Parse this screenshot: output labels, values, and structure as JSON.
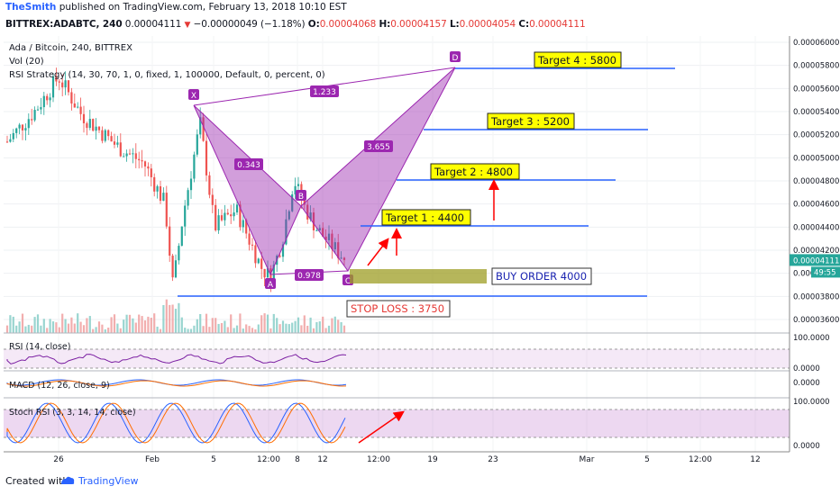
{
  "header": {
    "user": "TheSmith",
    "published": "published on TradingView.com, February 13, 2018 10:10 EST",
    "symbol": "BITTREX:ADABTC, 240",
    "last": "0.00004111",
    "change": "−0.00000049 (−1.18%)",
    "o_label": "O:",
    "o": "0.00004068",
    "h_label": "H:",
    "h": "0.00004157",
    "l_label": "L:",
    "l": "0.00004054",
    "c_label": "C:",
    "c": "0.00004111"
  },
  "legend": {
    "pair": "Ada / Bitcoin, 240, BITTREX",
    "vol": "Vol (20)",
    "strategy": "RSI Strategy (14, 30, 70, 1, 0, fixed, 1, 100000, Default, 0, percent, 0)",
    "rsi": "RSI (14, close)",
    "macd": "MACD (12, 26, close, 9)",
    "stoch": "Stoch RSI (3, 3, 14, 14, close)"
  },
  "chart_data": {
    "type": "candlestick",
    "y_ticks": [
      "0.00006000",
      "0.00005800",
      "0.00005600",
      "0.00005400",
      "0.00005200",
      "0.00005000",
      "0.00004800",
      "0.00004600",
      "0.00004400",
      "0.00004200",
      "0.00004000",
      "0.00003800",
      "0.00003600"
    ],
    "x_ticks": [
      "26",
      "Feb",
      "5",
      "12:00",
      "8",
      "12",
      "12:00",
      "19",
      "23",
      "Mar",
      "5",
      "12:00",
      "12"
    ],
    "last_price": "0.00004111",
    "countdown": "49:55",
    "rsi_ticks": [
      "100.0000",
      "0.0000"
    ],
    "macd_ticks": [
      "0.0000"
    ],
    "stoch_ticks": [
      "100.0000",
      "0.0000"
    ],
    "harmonic_points": [
      {
        "name": "X",
        "price": 5.43e-05
      },
      {
        "name": "A",
        "price": 3.96e-05
      },
      {
        "name": "B",
        "price": 4.62e-05
      },
      {
        "name": "C",
        "price": 4.03e-05
      },
      {
        "name": "D",
        "price": 5.76e-05
      }
    ],
    "ratios": [
      "1.233",
      "0.343",
      "3.655",
      "0.978"
    ],
    "levels": [
      {
        "label": "Target 4 : 5800",
        "price": 5800
      },
      {
        "label": "Target 3 : 5200",
        "price": 5200
      },
      {
        "label": "Target 2 : 4800",
        "price": 4800
      },
      {
        "label": "Target 1 : 4400",
        "price": 4400
      },
      {
        "label": "BUY ORDER 4000",
        "price": 4000
      },
      {
        "label": "STOP LOSS : 3750",
        "price": 3750
      }
    ],
    "colors": {
      "up": "#26a69a",
      "down": "#ef5350",
      "pattern": "#9c27b0",
      "level": "#2962ff",
      "target_bg": "#ffff00",
      "arrow": "#ff0000"
    }
  },
  "footer": {
    "created": "Created with",
    "brand": "TradingView"
  }
}
